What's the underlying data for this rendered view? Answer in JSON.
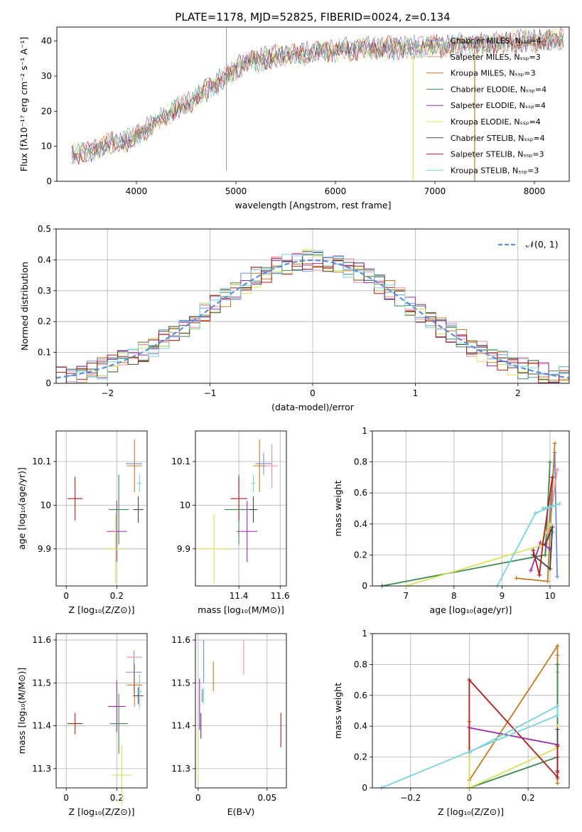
{
  "title": "PLATE=1178, MJD=52825, FIBERID=0024, z=0.134",
  "colors": [
    "#6d8ed6",
    "#f28ca0",
    "#c47a1e",
    "#3f8a4f",
    "#9a2db0",
    "#d7e35a",
    "#444444",
    "#b51d1d",
    "#7ad3dc"
  ],
  "chart_data": [
    {
      "id": "spectrum",
      "type": "line",
      "xlabel": "wavelength [Angstrom, rest frame]",
      "ylabel": "Flux [fλ10⁻¹⁷ erg cm⁻² s⁻¹ A⁻¹]",
      "xlim": [
        3200,
        8350
      ],
      "ylim": [
        0,
        44
      ],
      "xticks": [
        4000,
        5000,
        6000,
        7000,
        8000
      ],
      "yticks": [
        0,
        10,
        20,
        30,
        40
      ],
      "grid": false,
      "legend_position": "top-right",
      "series": [
        {
          "name": "Chabrier MILES, Nₛₛₚ=4",
          "color": "#6d8ed6"
        },
        {
          "name": "Salpeter MILES, Nₛₛₚ=3",
          "color": "#f28ca0"
        },
        {
          "name": "Kroupa MILES, Nₛₛₚ=3",
          "color": "#c47a1e"
        },
        {
          "name": "Chabrier ELODIE, Nₛₛₚ=4",
          "color": "#3f8a4f"
        },
        {
          "name": "Salpeter ELODIE, Nₛₛₚ=4",
          "color": "#9a2db0"
        },
        {
          "name": "Kroupa ELODIE, Nₛₛₚ=4",
          "color": "#d7e35a"
        },
        {
          "name": "Chabrier STELIB, Nₛₛₚ=4",
          "color": "#444444"
        },
        {
          "name": "Salpeter STELIB, Nₛₛₚ=3",
          "color": "#b51d1d"
        },
        {
          "name": "Kroupa STELIB, Nₛₛₚ=3",
          "color": "#7ad3dc"
        }
      ],
      "continuum": {
        "x": [
          3350,
          3500,
          3650,
          3800,
          3950,
          4100,
          4300,
          4500,
          4700,
          4900,
          5100,
          5300,
          5500,
          5700,
          5900,
          6100,
          6300,
          6500,
          6700,
          6900,
          7100,
          7300,
          7500,
          7700,
          7900,
          8100,
          8300
        ],
        "y": [
          8,
          8,
          10,
          11,
          12,
          15,
          19,
          22,
          26,
          30,
          34,
          35,
          36,
          36.5,
          37,
          37.5,
          38,
          38,
          38,
          38.5,
          38.5,
          39,
          39,
          39.5,
          40,
          40,
          41
        ]
      }
    },
    {
      "id": "residuals",
      "type": "line",
      "xlabel": "(data-model)/error",
      "ylabel": "Normed distribution",
      "xlim": [
        -2.5,
        2.5
      ],
      "ylim": [
        0,
        0.5
      ],
      "xticks": [
        -2,
        -1,
        0,
        1,
        2
      ],
      "yticks": [
        0.0,
        0.1,
        0.2,
        0.3,
        0.4,
        0.5
      ],
      "grid": true,
      "legend": "𝒩(0, 1)",
      "legend_position": "top-right",
      "gaussian": {
        "mean": 0,
        "sigma": 1
      }
    },
    {
      "id": "age-vs-Z",
      "type": "scatter",
      "xlabel": "Z [log₁₀(Z/Z⊙)]",
      "ylabel": "age  [log₁₀(age/yr)]",
      "xlim": [
        -0.04,
        0.32
      ],
      "ylim": [
        9.815,
        10.17
      ],
      "xticks": [
        0.0,
        0.2
      ],
      "yticks": [
        9.9,
        10.0,
        10.1
      ],
      "grid": true,
      "points": [
        {
          "x": 0.268,
          "y": 10.095,
          "xerr": 0.032,
          "yerr": 0.0,
          "color": "#6d8ed6"
        },
        {
          "x": 0.27,
          "y": 10.09,
          "xerr": 0.03,
          "yerr": 0.06,
          "color": "#c47a1e"
        },
        {
          "x": 0.208,
          "y": 9.99,
          "xerr": 0.04,
          "yerr": 0.08,
          "color": "#3f8a4f"
        },
        {
          "x": 0.2,
          "y": 9.94,
          "xerr": 0.04,
          "yerr": 0.07,
          "color": "#9a2db0"
        },
        {
          "x": 0.195,
          "y": 9.9,
          "xerr": 0.035,
          "yerr": 0.08,
          "color": "#d7e35a"
        },
        {
          "x": 0.285,
          "y": 9.99,
          "xerr": 0.02,
          "yerr": 0.03,
          "color": "#444444"
        },
        {
          "x": 0.035,
          "y": 10.015,
          "xerr": 0.03,
          "yerr": 0.05,
          "color": "#b51d1d"
        },
        {
          "x": 0.29,
          "y": 10.05,
          "xerr": 0.01,
          "yerr": 0.02,
          "color": "#7ad3dc"
        }
      ]
    },
    {
      "id": "age-vs-mass",
      "type": "scatter",
      "xlabel": "mass [log₁₀(M/M⊙)]",
      "ylabel": "",
      "xlim": [
        11.19,
        11.63
      ],
      "ylim": [
        9.815,
        10.17
      ],
      "xticks": [
        11.4,
        11.6
      ],
      "yticks": [
        9.9,
        10.0,
        10.1
      ],
      "grid": true,
      "points": [
        {
          "x": 11.52,
          "y": 10.095,
          "xerr": 0.04,
          "yerr": 0.025,
          "color": "#6d8ed6"
        },
        {
          "x": 11.56,
          "y": 10.09,
          "xerr": 0.03,
          "yerr": 0.05,
          "color": "#f28ca0"
        },
        {
          "x": 11.5,
          "y": 10.09,
          "xerr": 0.03,
          "yerr": 0.06,
          "color": "#c47a1e"
        },
        {
          "x": 11.4,
          "y": 9.99,
          "xerr": 0.07,
          "yerr": 0.08,
          "color": "#3f8a4f"
        },
        {
          "x": 11.44,
          "y": 9.94,
          "xerr": 0.05,
          "yerr": 0.07,
          "color": "#9a2db0"
        },
        {
          "x": 11.28,
          "y": 9.9,
          "xerr": 0.08,
          "yerr": 0.08,
          "color": "#d7e35a"
        },
        {
          "x": 11.47,
          "y": 9.99,
          "xerr": 0.02,
          "yerr": 0.03,
          "color": "#444444"
        },
        {
          "x": 11.4,
          "y": 10.015,
          "xerr": 0.04,
          "yerr": 0.05,
          "color": "#b51d1d"
        },
        {
          "x": 11.47,
          "y": 10.05,
          "xerr": 0.01,
          "yerr": 0.02,
          "color": "#7ad3dc"
        }
      ]
    },
    {
      "id": "weight-vs-age",
      "type": "line",
      "xlabel": "age  [log₁₀(age/yr)]",
      "ylabel": "mass weight",
      "xlim": [
        6.3,
        10.4
      ],
      "ylim": [
        0,
        1.0
      ],
      "xticks": [
        7,
        8,
        9,
        10
      ],
      "yticks": [
        0.0,
        0.2,
        0.4,
        0.6,
        0.8,
        1.0
      ],
      "grid": true,
      "series": [
        {
          "color": "#6d8ed6",
          "x": [
            10.15,
            10.1,
            9.95,
            10.05
          ],
          "y": [
            0.06,
            0.86,
            0.3,
            0.35
          ]
        },
        {
          "color": "#f28ca0",
          "x": [
            10.15,
            9.9,
            10.0
          ],
          "y": [
            0.75,
            0.2,
            0.4
          ]
        },
        {
          "color": "#c47a1e",
          "x": [
            9.3,
            9.95,
            10.1
          ],
          "y": [
            0.05,
            0.03,
            0.92
          ]
        },
        {
          "color": "#3f8a4f",
          "x": [
            6.5,
            9.9,
            10.0
          ],
          "y": [
            0.0,
            0.2,
            0.8
          ]
        },
        {
          "color": "#9a2db0",
          "x": [
            9.6,
            9.8,
            10.0
          ],
          "y": [
            0.1,
            0.28,
            0.24
          ]
        },
        {
          "color": "#d7e35a",
          "x": [
            7.0,
            9.8,
            10.0,
            10.05
          ],
          "y": [
            0.0,
            0.26,
            0.4,
            0.34
          ]
        },
        {
          "color": "#444444",
          "x": [
            9.65,
            10.0,
            10.05,
            9.9
          ],
          "y": [
            0.2,
            0.11,
            0.38,
            0.27
          ]
        },
        {
          "color": "#b51d1d",
          "x": [
            9.65,
            9.78,
            9.85,
            10.05
          ],
          "y": [
            0.23,
            0.07,
            0.27,
            0.7
          ]
        },
        {
          "color": "#7ad3dc",
          "x": [
            8.9,
            9.7,
            10.2,
            9.85
          ],
          "y": [
            0.0,
            0.47,
            0.53,
            0.5
          ]
        }
      ]
    },
    {
      "id": "mass-vs-Z",
      "type": "scatter",
      "xlabel": "Z [log₁₀(Z/Z⊙)]",
      "ylabel": "mass [log₁₀(M/M⊙)]",
      "xlim": [
        -0.04,
        0.32
      ],
      "ylim": [
        11.255,
        11.615
      ],
      "xticks": [
        0.0,
        0.2
      ],
      "yticks": [
        11.3,
        11.4,
        11.5,
        11.6
      ],
      "grid": true,
      "points": [
        {
          "x": 0.268,
          "y": 11.525,
          "xerr": 0.032,
          "yerr": 0.05,
          "color": "#6d8ed6"
        },
        {
          "x": 0.27,
          "y": 11.56,
          "xerr": 0.03,
          "yerr": 0.0,
          "color": "#f28ca0"
        },
        {
          "x": 0.27,
          "y": 11.495,
          "xerr": 0.03,
          "yerr": 0.05,
          "color": "#c47a1e"
        },
        {
          "x": 0.208,
          "y": 11.405,
          "xerr": 0.035,
          "yerr": 0.07,
          "color": "#3f8a4f"
        },
        {
          "x": 0.2,
          "y": 11.445,
          "xerr": 0.035,
          "yerr": 0.06,
          "color": "#9a2db0"
        },
        {
          "x": 0.22,
          "y": 11.285,
          "xerr": 0.04,
          "yerr": 0.07,
          "color": "#d7e35a"
        },
        {
          "x": 0.285,
          "y": 11.47,
          "xerr": 0.02,
          "yerr": 0.02,
          "color": "#444444"
        },
        {
          "x": 0.035,
          "y": 11.405,
          "xerr": 0.03,
          "yerr": 0.025,
          "color": "#b51d1d"
        },
        {
          "x": 0.29,
          "y": 11.48,
          "xerr": 0.01,
          "yerr": 0.04,
          "color": "#7ad3dc"
        }
      ]
    },
    {
      "id": "mass-vs-ebv",
      "type": "scatter",
      "xlabel": "E(B-V)",
      "ylabel": "",
      "xlim": [
        -0.002,
        0.064
      ],
      "ylim": [
        11.255,
        11.615
      ],
      "xticks": [
        0.0,
        0.05
      ],
      "yticks": [
        11.3,
        11.4,
        11.5,
        11.6
      ],
      "grid": true,
      "points": [
        {
          "x": 0.004,
          "y": 11.55,
          "xerr": 0,
          "yerr": 0.05,
          "color": "#6d8ed6"
        },
        {
          "x": 0.033,
          "y": 11.56,
          "xerr": 0,
          "yerr": 0.04,
          "color": "#f28ca0"
        },
        {
          "x": 0.011,
          "y": 11.515,
          "xerr": 0,
          "yerr": 0.035,
          "color": "#c47a1e"
        },
        {
          "x": 0.003,
          "y": 11.47,
          "xerr": 0,
          "yerr": 0.015,
          "color": "#3f8a4f"
        },
        {
          "x": 0.001,
          "y": 11.45,
          "xerr": 0,
          "yerr": 0.06,
          "color": "#9a2db0"
        },
        {
          "x": 0.0,
          "y": 11.33,
          "xerr": 0,
          "yerr": 0.06,
          "color": "#d7e35a"
        },
        {
          "x": 0.002,
          "y": 11.4,
          "xerr": 0,
          "yerr": 0.03,
          "color": "#444444"
        },
        {
          "x": 0.06,
          "y": 11.39,
          "xerr": 0,
          "yerr": 0.04,
          "color": "#b51d1d"
        },
        {
          "x": 0.004,
          "y": 11.47,
          "xerr": 0,
          "yerr": 0.02,
          "color": "#7ad3dc"
        }
      ]
    },
    {
      "id": "weight-vs-Z",
      "type": "line",
      "xlabel": "Z [log₁₀(Z/Z⊙)]",
      "ylabel": "mass weight",
      "xlim": [
        -0.33,
        0.34
      ],
      "ylim": [
        0,
        1.0
      ],
      "xticks": [
        -0.2,
        0.0,
        0.2
      ],
      "yticks": [
        0.0,
        0.2,
        0.4,
        0.6,
        0.8,
        1.0
      ],
      "grid": true,
      "series": [
        {
          "color": "#6d8ed6",
          "x": [
            0.3,
            0.3
          ],
          "y": [
            0.06,
            0.86
          ]
        },
        {
          "color": "#f28ca0",
          "x": [
            0.3,
            0.3
          ],
          "y": [
            0.2,
            0.75
          ]
        },
        {
          "color": "#c47a1e",
          "x": [
            0.3,
            0.3,
            0.0,
            0.0
          ],
          "y": [
            0.03,
            0.92,
            0.05,
            0.43
          ]
        },
        {
          "color": "#3f8a4f",
          "x": [
            0.0,
            0.3,
            0.3
          ],
          "y": [
            0.0,
            0.2,
            0.8
          ]
        },
        {
          "color": "#9a2db0",
          "x": [
            0.0,
            0.3,
            0.3
          ],
          "y": [
            0.39,
            0.28,
            0.1
          ]
        },
        {
          "color": "#d7e35a",
          "x": [
            0.0,
            0.0,
            0.3,
            0.3
          ],
          "y": [
            0.26,
            0.0,
            0.26,
            0.4
          ]
        },
        {
          "color": "#444444",
          "x": [
            0.3,
            0.3,
            0.3
          ],
          "y": [
            0.11,
            0.38,
            0.27
          ]
        },
        {
          "color": "#b51d1d",
          "x": [
            0.0,
            0.0,
            0.3,
            0.3
          ],
          "y": [
            0.23,
            0.7,
            0.07,
            0.27
          ]
        },
        {
          "color": "#7ad3dc",
          "x": [
            -0.3,
            0.3,
            0.3,
            0.0
          ],
          "y": [
            0.0,
            0.47,
            0.53,
            0.23
          ]
        }
      ]
    }
  ]
}
